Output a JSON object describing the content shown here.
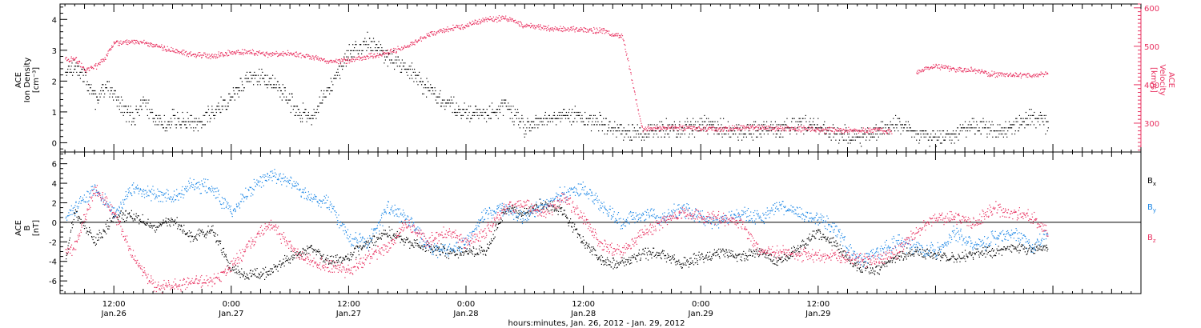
{
  "chart_data": [
    {
      "type": "scatter",
      "panel": "top",
      "ylabel_left": [
        "ACE",
        "Ion Density",
        "[cm⁻³]"
      ],
      "ylabel_right": [
        "ACE",
        "Velocity",
        "[km/s]"
      ],
      "yticks_left": [
        "0",
        "1",
        "2",
        "3",
        "4"
      ],
      "ylim_left": [
        -0.3,
        4.5
      ],
      "yticks_right": [
        "300",
        "400",
        "500",
        "600"
      ],
      "ylim_right": [
        225,
        610
      ],
      "grid": false,
      "series": [
        {
          "name": "",
          "axis": "left",
          "color": "#000000",
          "x": [
            7.0,
            8.0,
            9.0,
            10.0,
            11.0,
            12.0,
            13.0,
            14.0,
            15.0,
            16.0,
            17.0,
            18.0,
            20.0,
            22.0,
            24.0,
            26.0,
            28.0,
            30.0,
            31.0,
            32.0,
            33.0,
            34.0,
            36.0,
            38.0,
            40.0,
            42.0,
            44.0,
            46.0,
            48.0,
            50.0,
            52.0,
            54.0,
            56.0,
            58.0,
            60.0,
            62.0,
            64.0,
            66.0,
            68.0,
            70.0,
            72.0,
            74.0,
            76.0,
            78.0,
            80.0,
            82.0,
            84.0,
            86.0,
            88.0,
            90.0,
            92.0,
            94.0,
            96.0,
            98.0,
            100.0,
            102.0,
            104.0,
            106.0,
            107.5
          ],
          "y": [
            2.3,
            2.5,
            2.1,
            1.4,
            1.8,
            1.6,
            1.1,
            0.8,
            1.3,
            0.9,
            0.6,
            0.8,
            0.6,
            0.9,
            1.5,
            2.2,
            2.0,
            1.4,
            1.0,
            0.8,
            1.3,
            1.8,
            2.9,
            3.3,
            2.8,
            2.4,
            1.8,
            1.3,
            1.0,
            0.9,
            1.2,
            0.5,
            0.8,
            0.9,
            0.8,
            0.6,
            0.4,
            0.3,
            0.5,
            0.4,
            0.6,
            0.5,
            0.3,
            0.5,
            0.4,
            0.6,
            0.5,
            0.3,
            0.2,
            0.4,
            0.6,
            0.3,
            0.2,
            0.3,
            0.6,
            0.4,
            0.5,
            0.9,
            0.6
          ],
          "points": 1900
        },
        {
          "name": "",
          "axis": "right",
          "color": "#e8305f",
          "x": [
            7.0,
            8.0,
            9.0,
            10.0,
            11.0,
            12.0,
            14.0,
            16.0,
            18.0,
            20.0,
            22.0,
            24.0,
            26.0,
            28.0,
            30.0,
            32.0,
            34.0,
            36.0,
            38.0,
            40.0,
            42.0,
            44.0,
            46.0,
            48.0,
            50.0,
            52.0,
            54.0,
            56.0,
            58.0,
            60.0,
            62.0,
            64.0,
            66.0,
            68.0,
            70.0,
            72.0,
            74.0,
            76.0,
            78.0,
            80.0,
            82.0,
            84.0,
            86.0,
            88.0,
            90.0,
            91.5,
            92.0,
            94.0,
            96.0,
            98.0,
            100.0,
            102.0,
            104.0,
            106.0,
            107.5
          ],
          "y": [
            465,
            470,
            440,
            445,
            470,
            510,
            515,
            505,
            490,
            480,
            475,
            485,
            485,
            480,
            482,
            475,
            460,
            465,
            475,
            485,
            500,
            530,
            545,
            555,
            570,
            575,
            555,
            550,
            545,
            545,
            540,
            525,
            285,
            288,
            290,
            287,
            286,
            289,
            291,
            288,
            286,
            284,
            283,
            282,
            283,
            280,
            null,
            435,
            450,
            440,
            438,
            428,
            428,
            424,
            430
          ],
          "points": 1900
        }
      ]
    },
    {
      "type": "scatter",
      "panel": "bottom",
      "ylabel": [
        "ACE",
        "B",
        "[nT]"
      ],
      "yticks": [
        "-6",
        "-4",
        "-2",
        "0",
        "2",
        "4",
        "6"
      ],
      "ylim": [
        -7.3,
        7.2
      ],
      "zero_line": true,
      "grid": false,
      "legend": "right",
      "series": [
        {
          "name": "B",
          "subscript": "x",
          "color": "#000000",
          "x": [
            7.0,
            8.0,
            10.0,
            12.0,
            14.0,
            16.0,
            18.0,
            20.0,
            22.0,
            24.0,
            26.0,
            28.0,
            30.0,
            32.0,
            34.0,
            36.0,
            38.0,
            40.0,
            42.0,
            44.0,
            46.0,
            48.0,
            50.0,
            52.0,
            54.0,
            56.0,
            58.0,
            60.0,
            62.0,
            64.0,
            66.0,
            68.0,
            70.0,
            72.0,
            74.0,
            76.0,
            78.0,
            80.0,
            82.0,
            84.0,
            86.0,
            88.0,
            90.0,
            92.0,
            94.0,
            96.0,
            98.0,
            100.0,
            102.0,
            104.0,
            106.0,
            107.5
          ],
          "y": [
            -4.0,
            1.2,
            -2.0,
            0.5,
            0.8,
            -0.5,
            0.3,
            -1.5,
            -0.8,
            -4.8,
            -5.5,
            -5.0,
            -3.5,
            -2.5,
            -4.0,
            -3.5,
            -2.0,
            -1.0,
            -2.0,
            -2.5,
            -3.0,
            -3.0,
            -3.0,
            1.5,
            1.0,
            2.0,
            1.0,
            -2.0,
            -4.0,
            -4.2,
            -3.2,
            -3.3,
            -4.2,
            -3.6,
            -3.0,
            -3.4,
            -3.0,
            -4.0,
            -2.5,
            -1.0,
            -2.5,
            -4.5,
            -4.8,
            -3.5,
            -3.0,
            -3.3,
            -3.7,
            -3.0,
            -3.0,
            -2.5,
            -2.8,
            -2.5
          ],
          "points": 1900
        },
        {
          "name": "B",
          "subscript": "y",
          "color": "#1a86e6",
          "x": [
            7.0,
            8.0,
            10.0,
            12.0,
            14.0,
            16.0,
            18.0,
            20.0,
            22.0,
            24.0,
            26.0,
            28.0,
            30.0,
            32.0,
            34.0,
            36.0,
            38.0,
            40.0,
            42.0,
            44.0,
            46.0,
            48.0,
            50.0,
            52.0,
            54.0,
            56.0,
            58.0,
            60.0,
            62.0,
            64.0,
            66.0,
            68.0,
            70.0,
            72.0,
            74.0,
            76.0,
            78.0,
            80.0,
            82.0,
            84.0,
            86.0,
            88.0,
            90.0,
            92.0,
            94.0,
            96.0,
            98.0,
            100.0,
            102.0,
            104.0,
            106.0,
            107.5
          ],
          "y": [
            0.5,
            1.5,
            3.5,
            1.0,
            3.5,
            3.0,
            2.5,
            4.0,
            3.5,
            1.0,
            3.5,
            5.0,
            4.0,
            2.5,
            2.0,
            -1.5,
            -2.0,
            1.5,
            0.5,
            -2.5,
            -3.0,
            -2.0,
            1.0,
            1.5,
            0.5,
            2.0,
            3.0,
            3.5,
            1.5,
            0.0,
            1.0,
            0.5,
            1.5,
            0.5,
            0.0,
            1.0,
            0.5,
            1.5,
            1.0,
            0.5,
            -1.0,
            -4.0,
            -3.0,
            -2.0,
            -2.5,
            -3.0,
            -1.0,
            -2.5,
            -1.5,
            -1.0,
            -2.5,
            -1.0
          ],
          "points": 1900
        },
        {
          "name": "B",
          "subscript": "z",
          "color": "#e8305f",
          "x": [
            7.0,
            8.0,
            10.0,
            12.0,
            14.0,
            16.0,
            18.0,
            20.0,
            22.0,
            24.0,
            26.0,
            28.0,
            30.0,
            32.0,
            34.0,
            36.0,
            38.0,
            40.0,
            42.0,
            44.0,
            46.0,
            48.0,
            50.0,
            52.0,
            54.0,
            56.0,
            58.0,
            60.0,
            62.0,
            64.0,
            66.0,
            68.0,
            70.0,
            72.0,
            74.0,
            76.0,
            78.0,
            80.0,
            82.0,
            84.0,
            86.0,
            88.0,
            90.0,
            92.0,
            94.0,
            96.0,
            98.0,
            100.0,
            102.0,
            104.0,
            106.0,
            107.5
          ],
          "y": [
            -3.0,
            -2.5,
            3.5,
            1.0,
            -3.5,
            -6.5,
            -6.5,
            -6.0,
            -6.0,
            -4.5,
            -2.0,
            0.0,
            -2.5,
            -4.0,
            -4.5,
            -5.0,
            -3.5,
            -2.5,
            0.0,
            -2.0,
            -1.0,
            -2.0,
            -1.0,
            1.5,
            2.0,
            1.0,
            2.5,
            0.5,
            -2.5,
            -3.0,
            -1.0,
            0.0,
            1.0,
            0.5,
            0.5,
            0.0,
            -3.0,
            -3.0,
            -3.2,
            -3.5,
            -3.5,
            -3.8,
            -4.0,
            -3.0,
            -1.0,
            0.5,
            0.5,
            0.0,
            1.5,
            1.0,
            0.5,
            -1.0
          ],
          "points": 1900
        }
      ]
    }
  ],
  "x_axis": {
    "xlim": [
      6.5,
      117.0
    ],
    "major_ticks": [
      {
        "hours": 12,
        "time": "12:00",
        "date": "Jan.26"
      },
      {
        "hours": 24,
        "time": "0:00",
        "date": "Jan.27"
      },
      {
        "hours": 36,
        "time": "12:00",
        "date": "Jan.27"
      },
      {
        "hours": 48,
        "time": "0:00",
        "date": "Jan.28"
      },
      {
        "hours": 60,
        "time": "12:00",
        "date": "Jan.28"
      },
      {
        "hours": 72,
        "time": "0:00",
        "date": "Jan.29"
      },
      {
        "hours": 84,
        "time": "12:00",
        "date": "Jan.29"
      }
    ],
    "minor_tick_step_hours": 1,
    "label": "hours:minutes, Jan. 26, 2012 - Jan. 29, 2012"
  },
  "colors": {
    "axes": "#000000",
    "velocity_axis": "#e8305f",
    "density": "#000000",
    "velocity": "#e8305f",
    "bx": "#000000",
    "by": "#1a86e6",
    "bz": "#e8305f"
  }
}
